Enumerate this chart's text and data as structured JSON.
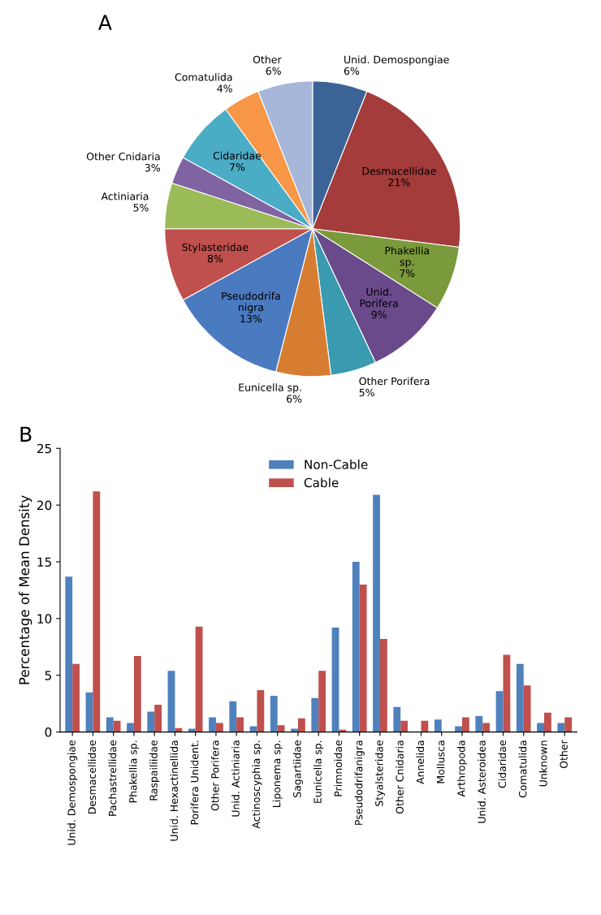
{
  "chart_data": [
    {
      "type": "pie",
      "title": "A",
      "categories": [
        "Unid. Demospongiae",
        "Desmacellidae",
        "Phakellia sp.",
        "Unid. Porifera",
        "Other Porifera",
        "Eunicella sp.",
        "Pseudodrifa nigra",
        "Stylasteridae",
        "Actiniaria",
        "Other Cnidaria",
        "Cidaridae",
        "Comatulida",
        "Other"
      ],
      "values": [
        6,
        21,
        7,
        9,
        5,
        6,
        13,
        8,
        5,
        3,
        7,
        4,
        6
      ],
      "value_labels": [
        "6%",
        "21%",
        "7%",
        "9%",
        "5%",
        "6%",
        "13%",
        "8%",
        "5%",
        "3%",
        "7%",
        "4%",
        "6%"
      ],
      "colors": [
        "#3c6396",
        "#a33c3a",
        "#7b9a3b",
        "#6a4a8a",
        "#3a9ab0",
        "#d77d32",
        "#4a7ac0",
        "#c0504d",
        "#9bbb59",
        "#8064a2",
        "#4bacc6",
        "#f79646",
        "#a6b7d9"
      ]
    },
    {
      "type": "bar",
      "title": "B",
      "ylabel": "Percentage of Mean Density",
      "categories": [
        "Unid. Demospongiae",
        "Desmacellidae",
        "Pachastrellidae",
        "Phakellia sp.",
        "Raspailiidae",
        "Unid. Hexactinellida",
        "Porifera Unident.",
        "Other Porifera",
        "Unid. Actiniaria",
        "Actinoscyphia sp.",
        "Liponema sp.",
        "Sagartiidae",
        "Eunicella sp.",
        "Primnoidae",
        "Pseudodrifanigra",
        "Styalsteridae",
        "Other Cnidaria",
        "Annelida",
        "Mollusca",
        "Arthropoda",
        "Unid. Asteroidea",
        "Cidaridae",
        "Comatulida",
        "Unknown",
        "Other"
      ],
      "series": [
        {
          "name": "Non-Cable",
          "color": "#4f81bd",
          "values": [
            13.7,
            3.5,
            1.3,
            0.8,
            1.8,
            5.4,
            0.3,
            1.3,
            2.7,
            0.5,
            3.2,
            0.3,
            3.0,
            9.2,
            15.0,
            20.9,
            2.2,
            0,
            1.1,
            0.5,
            1.4,
            3.6,
            6.0,
            0.8,
            0.8
          ]
        },
        {
          "name": "Cable",
          "color": "#c0504d",
          "values": [
            6.0,
            21.2,
            1.0,
            6.7,
            2.4,
            0.35,
            9.3,
            0.8,
            1.3,
            3.7,
            0.6,
            1.2,
            5.4,
            0.2,
            13.0,
            8.2,
            1.0,
            1.0,
            0,
            1.3,
            0.8,
            6.8,
            4.1,
            1.7,
            1.3
          ]
        }
      ],
      "ylim": [
        0,
        25
      ],
      "yticks": [
        0,
        5,
        10,
        15,
        20,
        25
      ],
      "grid": false,
      "legend": "top"
    }
  ]
}
